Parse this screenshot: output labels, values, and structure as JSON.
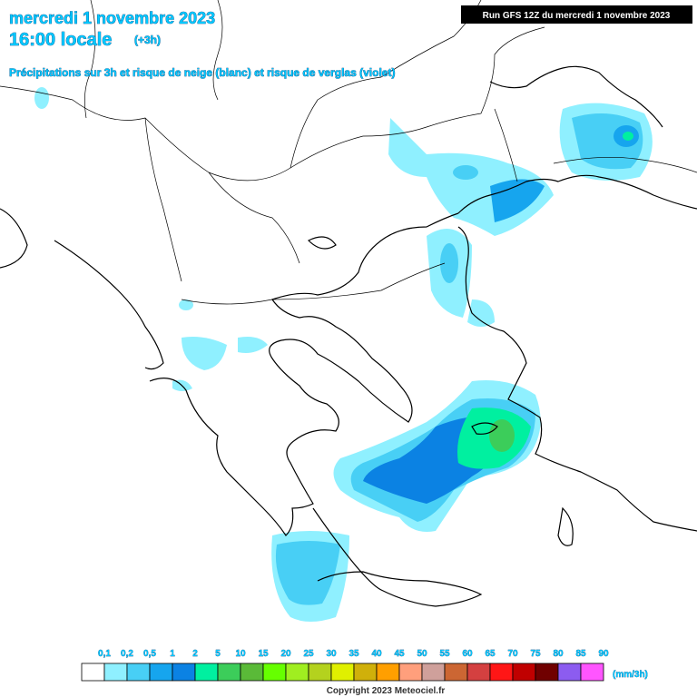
{
  "header": {
    "date": "mercredi 1 novembre 2023",
    "time": "16:00 locale",
    "offset": "(+3h)",
    "subtitle": "Précipitations sur 3h et risque de neige (blanc) et risque de verglas (violet)",
    "run": "Run GFS 12Z du mercredi 1 novembre 2023"
  },
  "legend": {
    "items": [
      {
        "label": "0,1",
        "color": "#ffffff"
      },
      {
        "label": "0,2",
        "color": "#8ff0ff"
      },
      {
        "label": "0,5",
        "color": "#48cff5"
      },
      {
        "label": "1",
        "color": "#16a5ee"
      },
      {
        "label": "2",
        "color": "#0b82e3"
      },
      {
        "label": "5",
        "color": "#00f0a0"
      },
      {
        "label": "10",
        "color": "#3ccd5a"
      },
      {
        "label": "15",
        "color": "#5aba38"
      },
      {
        "label": "20",
        "color": "#66ff00"
      },
      {
        "label": "25",
        "color": "#a0ee20"
      },
      {
        "label": "30",
        "color": "#b4d21e"
      },
      {
        "label": "35",
        "color": "#e0f000"
      },
      {
        "label": "40",
        "color": "#d0b00a"
      },
      {
        "label": "45",
        "color": "#ff9f00"
      },
      {
        "label": "50",
        "color": "#ff9f7c"
      },
      {
        "label": "55",
        "color": "#cfa09b"
      },
      {
        "label": "60",
        "color": "#cc6633"
      },
      {
        "label": "65",
        "color": "#d44040"
      },
      {
        "label": "70",
        "color": "#ff1616"
      },
      {
        "label": "75",
        "color": "#c00000"
      },
      {
        "label": "80",
        "color": "#700000"
      },
      {
        "label": "85",
        "color": "#8c5cf0"
      },
      {
        "label": "90",
        "color": "#ff55ff"
      }
    ],
    "unit": "(mm/3h)"
  },
  "footer": {
    "copyright": "Copyright 2023 Meteociel.fr"
  }
}
